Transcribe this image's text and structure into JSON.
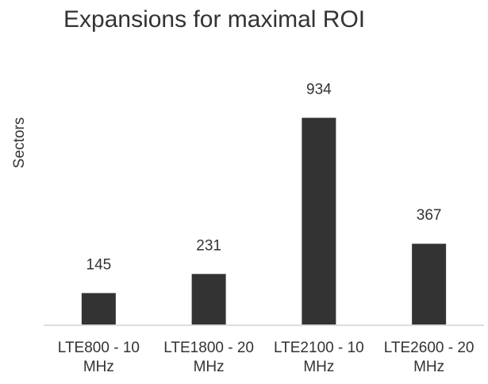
{
  "chart_data": {
    "type": "bar",
    "title": "Expansions for maximal ROI",
    "xlabel": "",
    "ylabel": "Sectors",
    "categories": [
      [
        "LTE800 - 10",
        "MHz"
      ],
      [
        "LTE1800 - 20",
        "MHz"
      ],
      [
        "LTE2100 - 10",
        "MHz"
      ],
      [
        "LTE2600 - 20",
        "MHz"
      ]
    ],
    "values": [
      145,
      231,
      934,
      367
    ],
    "data_labels": [
      "145",
      "231",
      "934",
      "367"
    ],
    "ylim": [
      0,
      1000
    ],
    "grid": false,
    "legend": "none",
    "colors": {
      "bar": "#333333",
      "baseline": "#dddddd",
      "text": "#333333"
    }
  }
}
